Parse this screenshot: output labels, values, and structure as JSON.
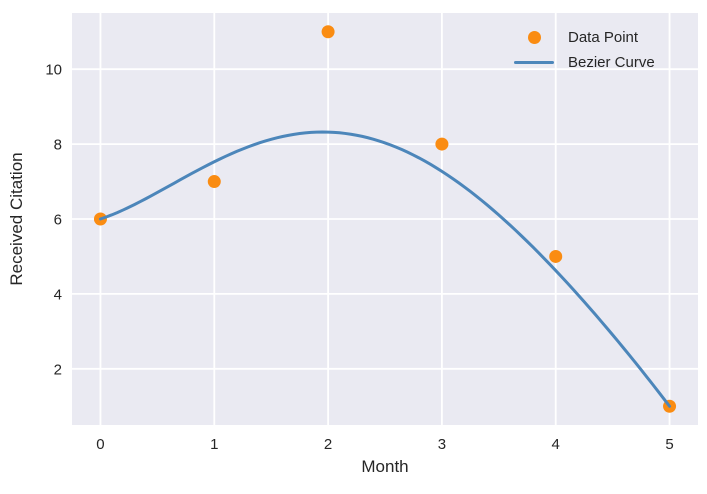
{
  "chart_data": {
    "type": "scatter",
    "title": "",
    "xlabel": "Month",
    "ylabel": "Received Citation",
    "xlim": [
      -0.25,
      5.25
    ],
    "ylim": [
      0.5,
      11.5
    ],
    "x_ticks": [
      "0",
      "1",
      "2",
      "3",
      "4",
      "5"
    ],
    "x_tick_values": [
      0,
      1,
      2,
      3,
      4,
      5
    ],
    "y_ticks": [
      "2",
      "4",
      "6",
      "8",
      "10"
    ],
    "y_tick_values": [
      2,
      4,
      6,
      8,
      10
    ],
    "grid": true,
    "legend_position": "upper right",
    "colors": {
      "plot_background": "#eaeaf2",
      "gridline": "#ffffff",
      "text": "#262626",
      "point": "#fa8c12",
      "curve": "#4c86ba"
    },
    "series": [
      {
        "name": "Data Point",
        "type": "scatter",
        "color": "#fa8c12",
        "marker_radius": 6.5,
        "x": [
          0,
          1,
          2,
          3,
          4,
          5
        ],
        "y": [
          6,
          7,
          11,
          8,
          5,
          1
        ]
      },
      {
        "name": "Bezier Curve",
        "type": "bezier",
        "color": "#4c86ba",
        "line_width": 3,
        "control_points": [
          [
            0,
            6
          ],
          [
            1,
            7
          ],
          [
            2,
            11
          ],
          [
            3,
            8
          ],
          [
            4,
            5
          ],
          [
            5,
            1
          ]
        ]
      }
    ],
    "legend": [
      {
        "label": "Data Point",
        "marker": "circle",
        "color": "#fa8c12"
      },
      {
        "label": "Bezier Curve",
        "marker": "line",
        "color": "#4c86ba"
      }
    ]
  }
}
